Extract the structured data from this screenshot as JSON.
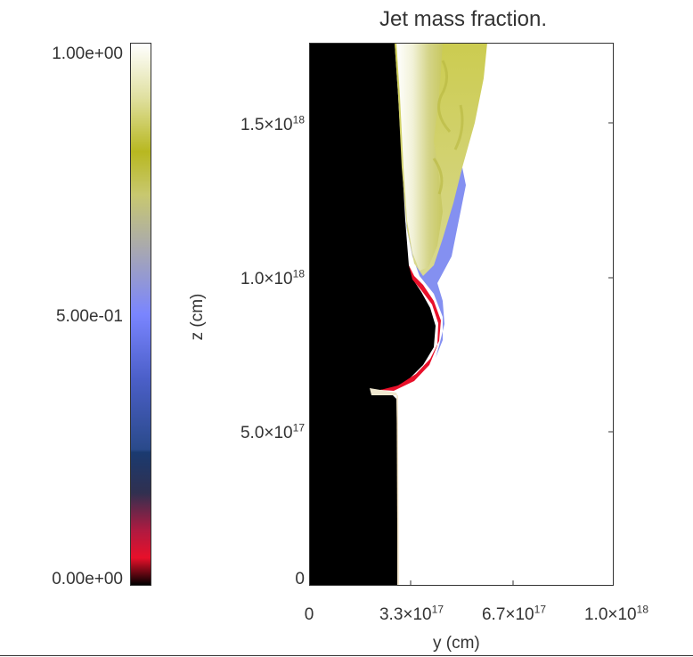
{
  "chart_data": {
    "type": "heatmap",
    "title": "Jet mass fraction.",
    "xlabel": "y (cm)",
    "ylabel": "z (cm)",
    "xlim": [
      0,
      1e+18
    ],
    "ylim": [
      0,
      1.75e+18
    ],
    "x_ticks": [
      {
        "value": 0,
        "mantissa": "0",
        "exponent": ""
      },
      {
        "value": 3.3e+17,
        "mantissa": "3.3×10",
        "exponent": "17"
      },
      {
        "value": 6.7e+17,
        "mantissa": "6.7×10",
        "exponent": "17"
      },
      {
        "value": 1e+18,
        "mantissa": "1.0×10",
        "exponent": "18"
      }
    ],
    "y_ticks": [
      {
        "value": 0,
        "mantissa": "0",
        "exponent": ""
      },
      {
        "value": 5e+17,
        "mantissa": "5.0×10",
        "exponent": "17"
      },
      {
        "value": 1e+18,
        "mantissa": "1.0×10",
        "exponent": "18"
      },
      {
        "value": 1.5e+18,
        "mantissa": "1.5×10",
        "exponent": "18"
      }
    ],
    "colorbar": {
      "min": 0.0,
      "max": 1.0,
      "labels": [
        "1.00e+00",
        "5.00e-01",
        "0.00e+00"
      ],
      "stops": [
        {
          "value": 0.0,
          "color": "#000000"
        },
        {
          "value": 0.05,
          "color": "#e8102a"
        },
        {
          "value": 0.1,
          "color": "#b01a40"
        },
        {
          "value": 0.17,
          "color": "#303050"
        },
        {
          "value": 0.245,
          "color": "#1a3a70"
        },
        {
          "value": 0.25,
          "color": "#2a4a8a"
        },
        {
          "value": 0.38,
          "color": "#4b5fc8"
        },
        {
          "value": 0.5,
          "color": "#7a85ff"
        },
        {
          "value": 0.62,
          "color": "#a8a8b0"
        },
        {
          "value": 0.72,
          "color": "#c8c870"
        },
        {
          "value": 0.8,
          "color": "#b8b820"
        },
        {
          "value": 0.9,
          "color": "#e0e0a0"
        },
        {
          "value": 1.0,
          "color": "#ffffff"
        }
      ]
    }
  }
}
